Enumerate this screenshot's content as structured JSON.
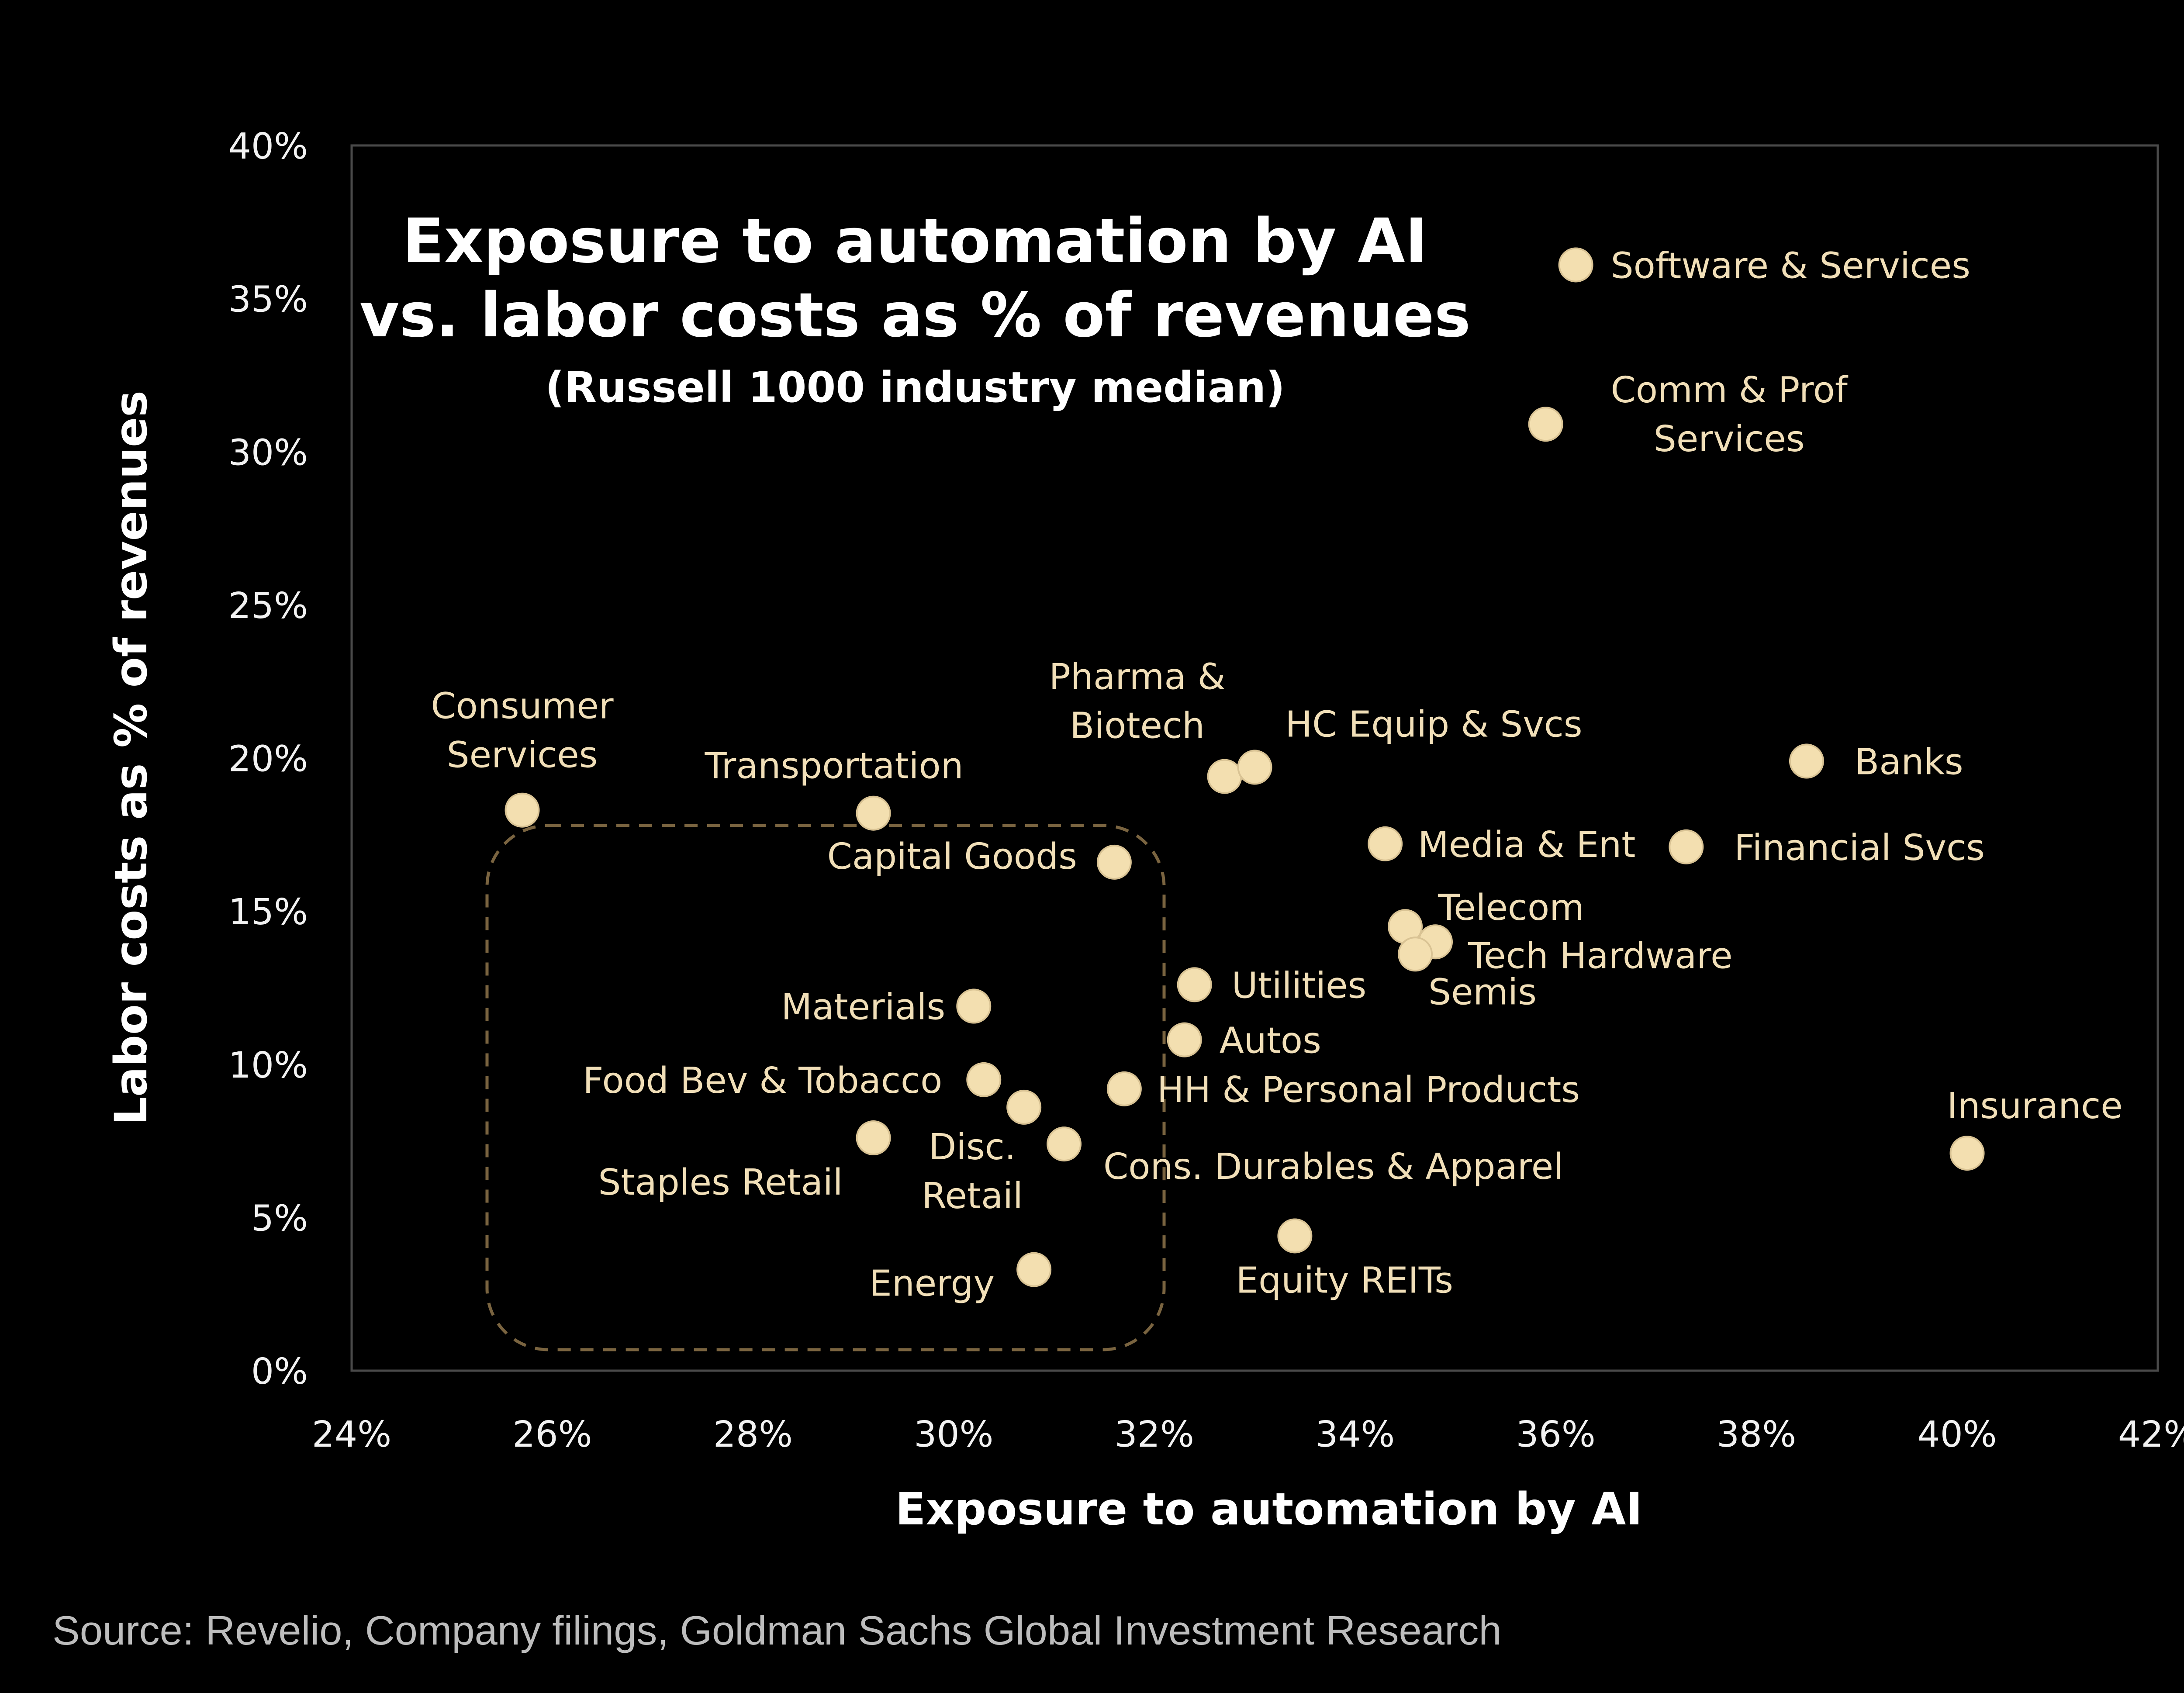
{
  "chart_data": {
    "type": "scatter",
    "title_lines": [
      "Exposure to automation by AI",
      "vs. labor costs as % of revenues"
    ],
    "subtitle": "(Russell 1000 industry median)",
    "xlabel": "Exposure to automation by AI",
    "ylabel": "Labor costs as % of revenues",
    "xlim": [
      24,
      42
    ],
    "ylim": [
      0,
      40
    ],
    "x_ticks": [
      "24%",
      "26%",
      "28%",
      "30%",
      "32%",
      "34%",
      "36%",
      "38%",
      "40%",
      "42%"
    ],
    "y_ticks": [
      "0%",
      "5%",
      "10%",
      "15%",
      "20%",
      "25%",
      "30%",
      "35%",
      "40%"
    ],
    "grid": false,
    "point_color": "#f3dfb0",
    "highlight_box_color": "#7a6440",
    "points": [
      {
        "label": [
          "Software & Services"
        ],
        "x": 36.2,
        "y": 36.1
      },
      {
        "label": [
          "Comm & Prof",
          "Services"
        ],
        "x": 35.9,
        "y": 30.9
      },
      {
        "label": [
          "Consumer",
          "Services"
        ],
        "x": 25.7,
        "y": 18.3
      },
      {
        "label": [
          "Transportation"
        ],
        "x": 29.2,
        "y": 18.2
      },
      {
        "label": [
          "Pharma &",
          "Biotech"
        ],
        "x": 32.7,
        "y": 19.4
      },
      {
        "label": [
          "HC Equip & Svcs"
        ],
        "x": 33.0,
        "y": 19.7
      },
      {
        "label": [
          "Banks"
        ],
        "x": 38.5,
        "y": 19.9
      },
      {
        "label": [
          "Capital Goods"
        ],
        "x": 31.6,
        "y": 16.6
      },
      {
        "label": [
          "Media & Ent"
        ],
        "x": 34.3,
        "y": 17.2
      },
      {
        "label": [
          "Financial Svcs"
        ],
        "x": 37.3,
        "y": 17.1
      },
      {
        "label": [
          "Telecom"
        ],
        "x": 34.5,
        "y": 14.5
      },
      {
        "label": [
          "Tech Hardware"
        ],
        "x": 34.8,
        "y": 14.0
      },
      {
        "label": [
          "Semis"
        ],
        "x": 34.6,
        "y": 13.6
      },
      {
        "label": [
          "Utilities"
        ],
        "x": 32.4,
        "y": 12.6
      },
      {
        "label": [
          "Materials"
        ],
        "x": 30.2,
        "y": 11.9
      },
      {
        "label": [
          "Autos"
        ],
        "x": 32.3,
        "y": 10.8
      },
      {
        "label": [
          "Food Bev & Tobacco"
        ],
        "x": 30.3,
        "y": 9.5
      },
      {
        "label": [
          "HH & Personal Products"
        ],
        "x": 31.7,
        "y": 9.2
      },
      {
        "label": [],
        "x": 30.7,
        "y": 8.6
      },
      {
        "label": [
          "Staples Retail"
        ],
        "x": 29.2,
        "y": 7.6
      },
      {
        "label": [
          "Disc.",
          "Retail"
        ],
        "x": 31.1,
        "y": 7.4
      },
      {
        "label": [
          "Cons. Durables & Apparel"
        ],
        "x": 31.1,
        "y": 7.4,
        "hide_marker": true
      },
      {
        "label": [
          "Insurance"
        ],
        "x": 40.1,
        "y": 7.1
      },
      {
        "label": [
          "Equity REITs"
        ],
        "x": 33.4,
        "y": 4.4
      },
      {
        "label": [
          "Energy"
        ],
        "x": 30.8,
        "y": 3.3
      }
    ]
  },
  "source": "Source: Revelio, Company filings, Goldman Sachs Global Investment Research"
}
